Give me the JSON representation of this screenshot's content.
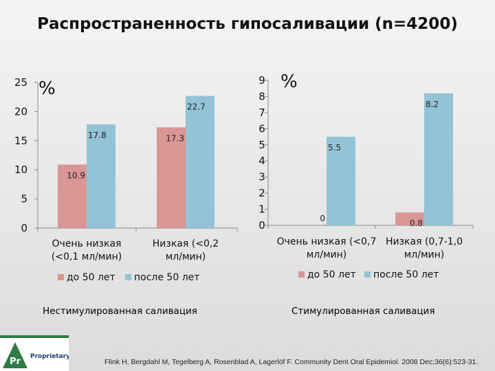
{
  "title": "Распространенность гипосаливации (n=4200)",
  "colors": {
    "series1": "#d99694",
    "series2": "#93c3d6",
    "axis": "#8a8a8a"
  },
  "chart_data": [
    {
      "type": "bar",
      "unit_label": "%",
      "ylim": [
        0,
        25
      ],
      "yticks": [
        "0",
        "5",
        "10",
        "15",
        "20",
        "25"
      ],
      "categories": [
        [
          "Очень низкая",
          "(<0,1 мл/мин)"
        ],
        [
          "Низкая (<0,2",
          "мл/мин)"
        ]
      ],
      "series": [
        {
          "name": "до 50 лет",
          "values": [
            10.9,
            17.3
          ],
          "labels": [
            "10.9",
            "17.3"
          ]
        },
        {
          "name": "после 50 лет",
          "values": [
            17.8,
            22.7
          ],
          "labels": [
            "17.8",
            "22.7"
          ]
        }
      ],
      "grid": false,
      "legend": "bottom",
      "caption": "Нестимулированная саливация"
    },
    {
      "type": "bar",
      "unit_label": "%",
      "ylim": [
        0,
        9
      ],
      "yticks": [
        "0",
        "1",
        "2",
        "3",
        "4",
        "5",
        "6",
        "7",
        "8",
        "9"
      ],
      "categories": [
        [
          "Очень низкая (<0,7",
          "мл/мин)"
        ],
        [
          "Низкая (0,7-1,0",
          "мл/мин)"
        ]
      ],
      "series": [
        {
          "name": "до 50 лет",
          "values": [
            0,
            0.8
          ],
          "labels": [
            "0",
            "0.8"
          ]
        },
        {
          "name": "после 50 лет",
          "values": [
            5.5,
            8.2
          ],
          "labels": [
            "5.5",
            "8.2"
          ]
        }
      ],
      "grid": false,
      "legend": "bottom",
      "caption": "Стимулированная саливация"
    }
  ],
  "footer": {
    "logo_text": "Proprietary",
    "logo_mark": "Pr",
    "citation": "Flink H, Bergdahl M, Tegelberg A, Rosenblad A, Lagerlöf F. Community Dent Oral Epidemiol. 2008 Dec;36(6):523-31."
  }
}
